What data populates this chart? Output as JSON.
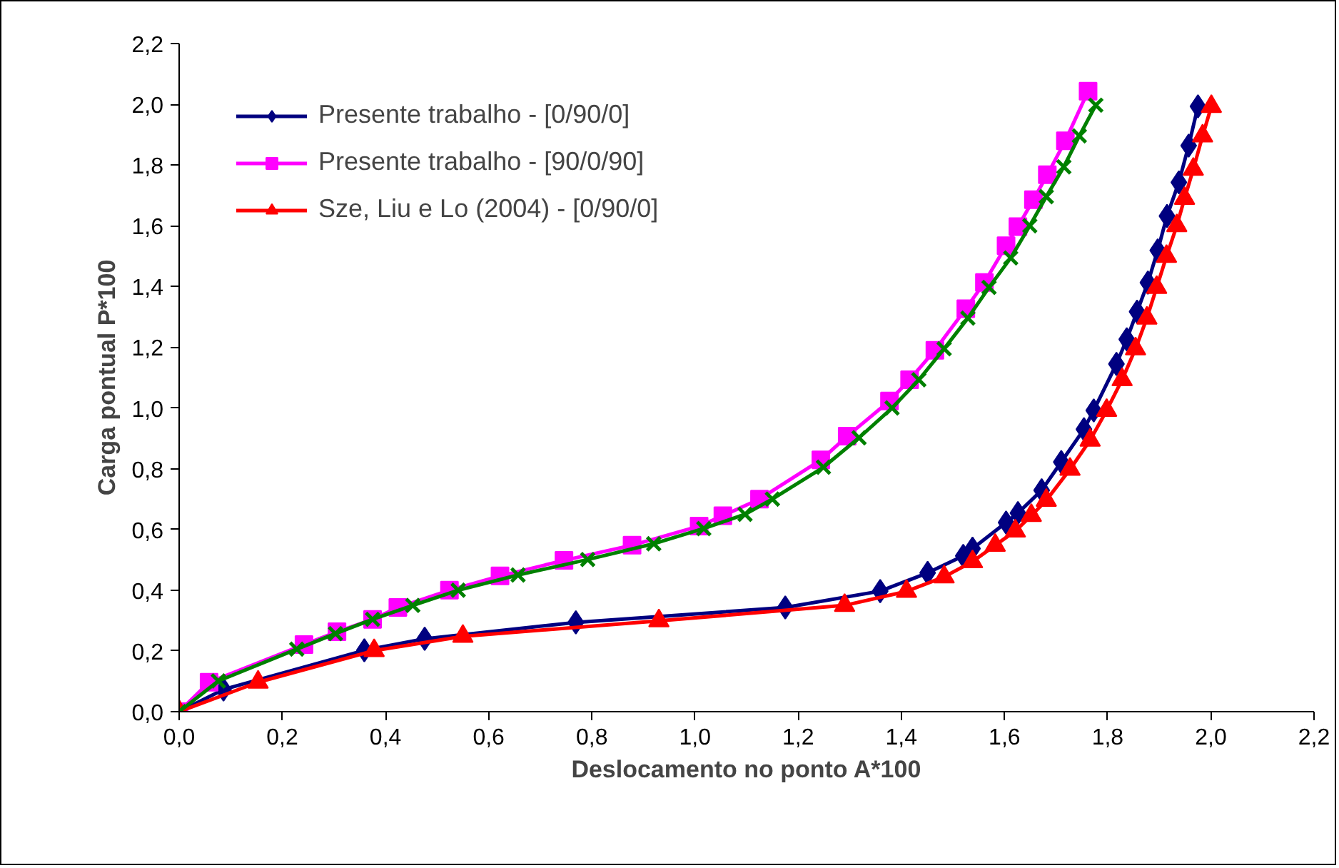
{
  "chart_data": {
    "type": "line",
    "xlabel": "Deslocamento no ponto A*100",
    "ylabel": "Carga pontual P*100",
    "xlim": [
      0,
      2.2
    ],
    "ylim": [
      0,
      2.2
    ],
    "xticks": [
      {
        "value": 0,
        "label": "0,0"
      },
      {
        "value": 0.2,
        "label": "0,2"
      },
      {
        "value": 0.4,
        "label": "0,4"
      },
      {
        "value": 0.6,
        "label": "0,6"
      },
      {
        "value": 0.8,
        "label": "0,8"
      },
      {
        "value": 1.0,
        "label": "1,0"
      },
      {
        "value": 1.2,
        "label": "1,2"
      },
      {
        "value": 1.4,
        "label": "1,4"
      },
      {
        "value": 1.6,
        "label": "1,6"
      },
      {
        "value": 1.8,
        "label": "1,8"
      },
      {
        "value": 2.0,
        "label": "2,0"
      },
      {
        "value": 2.2,
        "label": "2,2"
      }
    ],
    "yticks": [
      {
        "value": 0,
        "label": "0,0"
      },
      {
        "value": 0.2,
        "label": "0,2"
      },
      {
        "value": 0.4,
        "label": "0,4"
      },
      {
        "value": 0.6,
        "label": "0,6"
      },
      {
        "value": 0.8,
        "label": "0,8"
      },
      {
        "value": 1.0,
        "label": "1,0"
      },
      {
        "value": 1.2,
        "label": "1,2"
      },
      {
        "value": 1.4,
        "label": "1,4"
      },
      {
        "value": 1.6,
        "label": "1,6"
      },
      {
        "value": 1.8,
        "label": "1,8"
      },
      {
        "value": 2.0,
        "label": "2,0"
      },
      {
        "value": 2.2,
        "label": "2,2"
      }
    ],
    "grid": false,
    "legend": "top left",
    "line_style": "solid",
    "series": [
      {
        "name": "Presente trabalho - [0/90/0]",
        "color": "#000080",
        "marker": "diamond",
        "x": [
          0,
          0.086,
          0.359,
          0.476,
          0.769,
          1.175,
          1.359,
          1.451,
          1.52,
          1.538,
          1.603,
          1.626,
          1.672,
          1.71,
          1.754,
          1.773,
          1.817,
          1.837,
          1.857,
          1.878,
          1.897,
          1.915,
          1.938,
          1.957,
          1.975
        ],
        "values": [
          0,
          0.073,
          0.202,
          0.24,
          0.294,
          0.343,
          0.397,
          0.457,
          0.513,
          0.537,
          0.623,
          0.654,
          0.729,
          0.822,
          0.93,
          0.992,
          1.145,
          1.226,
          1.317,
          1.413,
          1.519,
          1.632,
          1.743,
          1.864,
          1.993
        ]
      },
      {
        "name": "Presente trabalho - [90/0/90]",
        "color": "#ff00ff",
        "marker": "square",
        "x": [
          0,
          0.058,
          0.242,
          0.306,
          0.375,
          0.424,
          0.524,
          0.622,
          0.746,
          0.878,
          1.008,
          1.054,
          1.125,
          1.244,
          1.295,
          1.377,
          1.416,
          1.465,
          1.525,
          1.561,
          1.603,
          1.626,
          1.656,
          1.683,
          1.718,
          1.762
        ],
        "values": [
          0,
          0.097,
          0.221,
          0.263,
          0.304,
          0.343,
          0.4,
          0.447,
          0.498,
          0.548,
          0.611,
          0.645,
          0.7,
          0.829,
          0.907,
          1.023,
          1.093,
          1.19,
          1.327,
          1.413,
          1.534,
          1.597,
          1.686,
          1.768,
          1.88,
          2.043
        ]
      },
      {
        "name": "Sze, Liu e Lo (2004) - [0/90/0]",
        "color": "#ff0000",
        "marker": "triangle",
        "x": [
          0,
          0.153,
          0.378,
          0.55,
          0.93,
          1.29,
          1.41,
          1.483,
          1.538,
          1.582,
          1.621,
          1.652,
          1.681,
          1.727,
          1.766,
          1.798,
          1.828,
          1.854,
          1.876,
          1.895,
          1.914,
          1.934,
          1.949,
          1.966,
          1.984,
          2.001
        ],
        "values": [
          0,
          0.097,
          0.201,
          0.248,
          0.299,
          0.35,
          0.396,
          0.444,
          0.494,
          0.548,
          0.595,
          0.646,
          0.696,
          0.798,
          0.894,
          0.992,
          1.093,
          1.195,
          1.296,
          1.397,
          1.499,
          1.6,
          1.69,
          1.786,
          1.896,
          1.993
        ]
      },
      {
        "color": "#008000",
        "marker": "cross",
        "x": [
          0,
          0.076,
          0.228,
          0.303,
          0.375,
          0.453,
          0.541,
          0.657,
          0.792,
          0.92,
          1.017,
          1.097,
          1.15,
          1.249,
          1.318,
          1.382,
          1.434,
          1.483,
          1.529,
          1.57,
          1.612,
          1.649,
          1.681,
          1.715,
          1.745,
          1.777
        ],
        "values": [
          0,
          0.101,
          0.206,
          0.257,
          0.304,
          0.35,
          0.4,
          0.45,
          0.501,
          0.553,
          0.603,
          0.65,
          0.7,
          0.805,
          0.902,
          1.0,
          1.093,
          1.195,
          1.296,
          1.397,
          1.494,
          1.6,
          1.696,
          1.794,
          1.896,
          1.997
        ]
      }
    ]
  }
}
